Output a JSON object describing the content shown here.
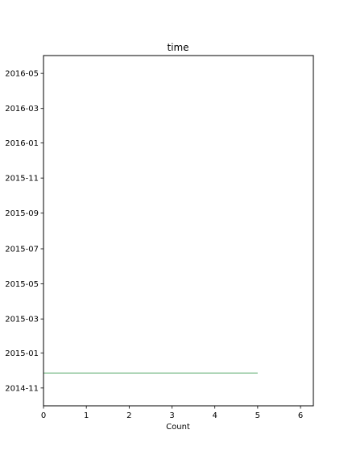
{
  "chart_data": {
    "type": "bar",
    "orientation": "horizontal",
    "title": "time",
    "xlabel": "Count",
    "ylabel": "",
    "xlim": [
      0,
      6.3
    ],
    "xticks": [
      0,
      1,
      2,
      3,
      4,
      5,
      6
    ],
    "ylim": [
      "2014-10-01",
      "2016-06-01"
    ],
    "yticks": [
      "2014-11",
      "2015-01",
      "2015-03",
      "2015-05",
      "2015-07",
      "2015-09",
      "2015-11",
      "2016-01",
      "2016-03",
      "2016-05"
    ],
    "bars": [
      {
        "date": "2014-11-27",
        "value": 5
      }
    ],
    "bar_color": "#55a868",
    "grid": false,
    "legend": false
  }
}
